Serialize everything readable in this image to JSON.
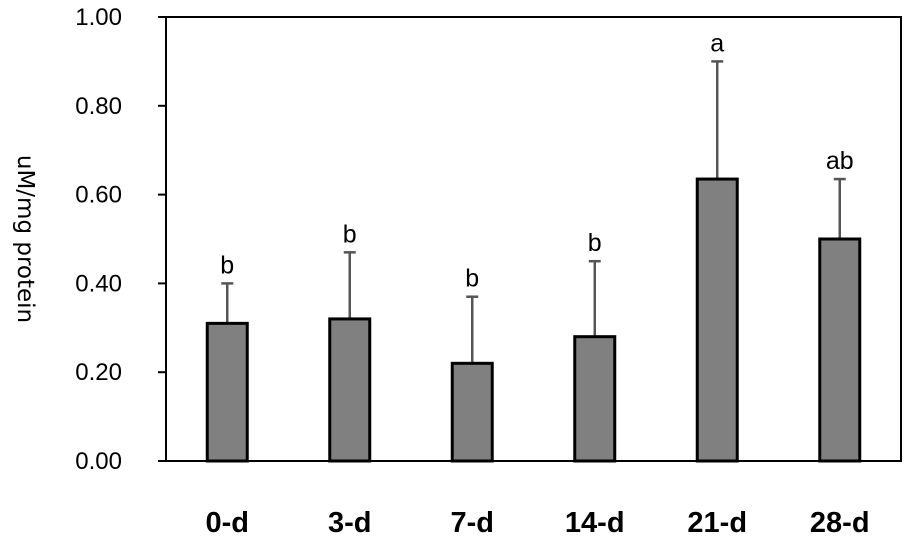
{
  "chart_data": {
    "type": "bar",
    "title": "",
    "xlabel": "",
    "ylabel": "uM/mg protein",
    "ylim": [
      0,
      1.0
    ],
    "yticks": [
      "0.00",
      "0.20",
      "0.40",
      "0.60",
      "0.80",
      "1.00"
    ],
    "categories": [
      "0-d",
      "3-d",
      "7-d",
      "14-d",
      "21-d",
      "28-d"
    ],
    "values": [
      0.31,
      0.32,
      0.22,
      0.28,
      0.635,
      0.5
    ],
    "error_upper": [
      0.4,
      0.47,
      0.37,
      0.45,
      0.9,
      0.635
    ],
    "significance": [
      "b",
      "b",
      "b",
      "b",
      "a",
      "ab"
    ],
    "bar_color": "#808080",
    "grid": false
  }
}
